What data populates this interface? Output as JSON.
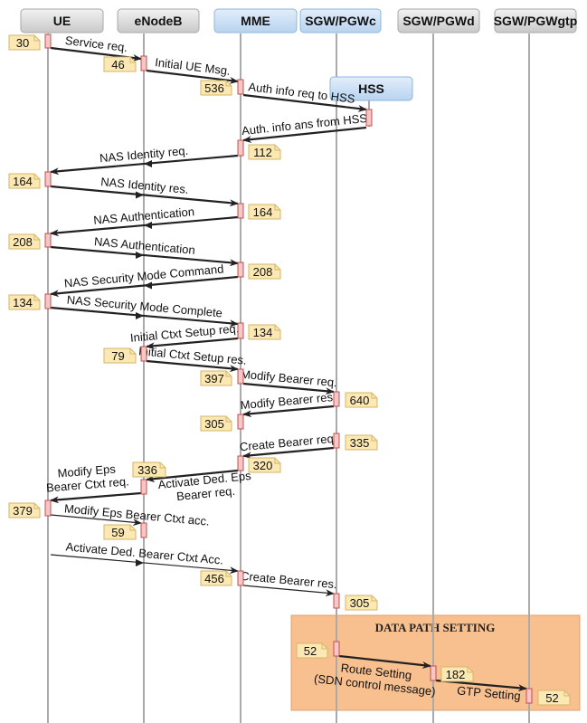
{
  "participants": [
    {
      "id": "ue",
      "label": "UE",
      "style": "gray"
    },
    {
      "id": "enb",
      "label": "eNodeB",
      "style": "gray"
    },
    {
      "id": "mme",
      "label": "MME",
      "style": "blue"
    },
    {
      "id": "sgwc",
      "label": "SGW/PGWc",
      "style": "blue"
    },
    {
      "id": "sgwd",
      "label": "SGW/PGWd",
      "style": "gray"
    },
    {
      "id": "gtp",
      "label": "SGW/PGWgtp",
      "style": "gray"
    },
    {
      "id": "hss",
      "label": "HSS",
      "style": "blue"
    }
  ],
  "messages": [
    {
      "from": "ue",
      "to": "enb",
      "label": [
        "Service req."
      ]
    },
    {
      "from": "enb",
      "to": "mme",
      "label": [
        "Initial UE Msg."
      ]
    },
    {
      "from": "mme",
      "to": "hss",
      "label": [
        "Auth info req to HSS"
      ]
    },
    {
      "from": "hss",
      "to": "mme",
      "label": [
        "Auth. info ans from HSS"
      ]
    },
    {
      "from": "mme",
      "to": "ue",
      "label": [
        "NAS Identity req."
      ]
    },
    {
      "from": "ue",
      "to": "mme",
      "label": [
        "NAS Identity res."
      ]
    },
    {
      "from": "mme",
      "to": "ue",
      "label": [
        "NAS Authentication"
      ]
    },
    {
      "from": "ue",
      "to": "mme",
      "label": [
        "NAS Authentication"
      ]
    },
    {
      "from": "mme",
      "to": "ue",
      "label": [
        "NAS Security Mode Command"
      ]
    },
    {
      "from": "ue",
      "to": "mme",
      "label": [
        "NAS Security Mode Complete"
      ]
    },
    {
      "from": "mme",
      "to": "enb",
      "label": [
        "Initial Ctxt Setup req."
      ]
    },
    {
      "from": "enb",
      "to": "mme",
      "label": [
        "Initial Ctxt Setup res."
      ]
    },
    {
      "from": "mme",
      "to": "sgwc",
      "label": [
        "Modify Bearer req."
      ]
    },
    {
      "from": "sgwc",
      "to": "mme",
      "label": [
        "Modify Bearer res."
      ]
    },
    {
      "from": "sgwc",
      "to": "mme",
      "label": [
        "Create Bearer req."
      ]
    },
    {
      "from": "mme",
      "to": "enb",
      "label": [
        "Activate Ded. Eps",
        "Bearer req."
      ]
    },
    {
      "from": "enb",
      "to": "ue",
      "label": [
        "Modify Eps",
        "Bearer Ctxt req."
      ]
    },
    {
      "from": "ue",
      "to": "enb",
      "label": [
        "Modify Eps Bearer Ctxt acc."
      ]
    },
    {
      "from": "ue",
      "to": "mme",
      "label": [
        "Activate Ded. Bearer Ctxt Acc."
      ]
    },
    {
      "from": "mme",
      "to": "sgwc",
      "label": [
        "Create Bearer res."
      ]
    },
    {
      "from": "sgwc",
      "to": "sgwd",
      "label": [
        "Route Setting",
        "(SDN control message)"
      ]
    },
    {
      "from": "sgwd",
      "to": "gtp",
      "label": [
        "GTP Setting"
      ]
    }
  ],
  "notes": [
    "30",
    "46",
    "536",
    "112",
    "164",
    "164",
    "208",
    "208",
    "134",
    "134",
    "79",
    "397",
    "640",
    "305",
    "335",
    "320",
    "336",
    "379",
    "59",
    "456",
    "305",
    "52",
    "182",
    "52"
  ],
  "group": {
    "title": "DATA PATH SETTING",
    "color": "#f9c08f"
  },
  "colors": {
    "activation": "#f7c6c6",
    "activation_stroke": "#c0504d",
    "note": "#fce8b2",
    "note_stroke": "#d6b66a",
    "header_blue": "#cfe2f3",
    "header_gray": "#dcdcdc"
  }
}
